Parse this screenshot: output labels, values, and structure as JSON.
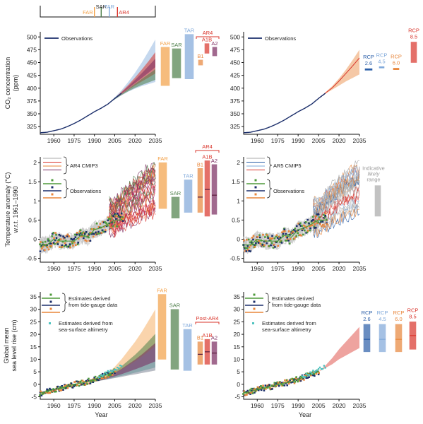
{
  "chart_data": [
    {
      "type": "line",
      "panel": "co2-ar-comparison",
      "ylabel": "CO2 concentration (ppm)",
      "ylim": [
        310,
        510
      ],
      "xlim": [
        1950,
        2035
      ],
      "yticks": [
        325,
        350,
        375,
        400,
        425,
        450,
        475,
        500
      ],
      "xticks": [
        1960,
        1975,
        1990,
        2005,
        2020,
        2035
      ],
      "legend": [
        "Observations"
      ],
      "series": [
        {
          "name": "Observations",
          "x": [
            1950,
            1955,
            1960,
            1965,
            1970,
            1975,
            1980,
            1985,
            1990,
            1995,
            2000,
            2005,
            2010
          ],
          "y": [
            313,
            314,
            317,
            320,
            325,
            331,
            338,
            346,
            354,
            361,
            369,
            380,
            390
          ]
        }
      ],
      "projection_fan": {
        "x": [
          2000,
          2005,
          2010,
          2015,
          2020,
          2025,
          2030,
          2035
        ],
        "low": [
          369,
          378,
          386,
          393,
          399,
          404,
          408,
          412
        ],
        "high": [
          369,
          382,
          396,
          412,
          430,
          450,
          472,
          495
        ]
      },
      "range_bars": [
        {
          "label": "FAR",
          "color": "#f3a047",
          "low": 405,
          "high": 480
        },
        {
          "label": "SAR",
          "color": "#4e7f4a",
          "low": 420,
          "high": 477
        },
        {
          "label": "TAR",
          "color": "#7fa8da",
          "low": 418,
          "high": 505
        },
        {
          "label": "B1",
          "color": "#e8853a",
          "low": 445,
          "high": 455
        },
        {
          "label": "A1B",
          "color": "#d9342b",
          "low": 468,
          "high": 487
        },
        {
          "label": "A2",
          "color": "#7a2a5f",
          "low": 463,
          "high": 480
        }
      ],
      "group_label": "AR4"
    },
    {
      "type": "line",
      "panel": "co2-rcp",
      "ylim": [
        310,
        510
      ],
      "xlim": [
        1950,
        2035
      ],
      "yticks": [
        325,
        350,
        375,
        400,
        425,
        450,
        475,
        500
      ],
      "xticks": [
        1960,
        1975,
        1990,
        2005,
        2020,
        2035
      ],
      "legend": [
        "Observations"
      ],
      "series": [
        {
          "name": "Observations",
          "x": [
            1950,
            1955,
            1960,
            1965,
            1970,
            1975,
            1980,
            1985,
            1990,
            1995,
            2000,
            2005,
            2010
          ],
          "y": [
            313,
            314,
            317,
            320,
            325,
            331,
            338,
            346,
            354,
            361,
            369,
            380,
            390
          ]
        }
      ],
      "projection_fan": {
        "x": [
          2005,
          2010,
          2015,
          2020,
          2025,
          2030,
          2035
        ],
        "low": [
          380,
          389,
          397,
          405,
          413,
          420,
          427
        ],
        "high": [
          380,
          392,
          404,
          419,
          436,
          455,
          475
        ]
      },
      "range_bars": [
        {
          "label": "RCP 2.6",
          "color": "#2a5ea8",
          "low": 435,
          "high": 438
        },
        {
          "label": "RCP 4.5",
          "color": "#7fa8da",
          "low": 440,
          "high": 442
        },
        {
          "label": "RCP 6.0",
          "color": "#e8853a",
          "low": 436,
          "high": 439
        },
        {
          "label": "RCP 8.5",
          "color": "#d9342b",
          "low": 450,
          "high": 490
        }
      ]
    },
    {
      "type": "line",
      "panel": "temperature-ar4",
      "ylabel": "Temperature anomaly (°C) w.r.t. 1961–1990",
      "ylim": [
        -0.6,
        2.15
      ],
      "xlim": [
        1950,
        2035
      ],
      "yticks": [
        -0.5,
        0,
        0.5,
        1,
        1.5,
        2
      ],
      "xticks": [
        1960,
        1975,
        1990,
        2005,
        2020,
        2035
      ],
      "legend": [
        "AR4 CMIP3",
        "Observations"
      ],
      "series": [
        {
          "name": "Observations",
          "x": [
            1950,
            1955,
            1960,
            1965,
            1970,
            1975,
            1980,
            1985,
            1990,
            1995,
            2000,
            2005,
            2010
          ],
          "y": [
            -0.15,
            -0.15,
            0.0,
            -0.05,
            -0.05,
            -0.05,
            0.1,
            0.05,
            0.25,
            0.3,
            0.4,
            0.5,
            0.5
          ]
        }
      ],
      "projection_fan": {
        "x": [
          2005,
          2010,
          2015,
          2020,
          2025,
          2030,
          2035
        ],
        "low": [
          0.2,
          0.3,
          0.4,
          0.45,
          0.55,
          0.6,
          0.7
        ],
        "high": [
          1.0,
          1.2,
          1.4,
          1.55,
          1.7,
          1.85,
          2.0
        ]
      },
      "range_bars": [
        {
          "label": "FAR",
          "color": "#f3a047",
          "low": 0.8,
          "high": 2.0
        },
        {
          "label": "SAR",
          "color": "#4e7f4a",
          "low": 0.55,
          "high": 1.1
        },
        {
          "label": "TAR",
          "color": "#7fa8da",
          "low": 0.7,
          "high": 1.55
        },
        {
          "label": "B1",
          "color": "#e8853a",
          "low": 0.7,
          "high": 1.85,
          "mid": 1.1
        },
        {
          "label": "A1B",
          "color": "#d9342b",
          "low": 0.6,
          "high": 2.05,
          "mid": 1.3
        },
        {
          "label": "A2",
          "color": "#7a2a5f",
          "low": 0.65,
          "high": 1.95,
          "mid": 1.15
        }
      ],
      "group_label": "AR4"
    },
    {
      "type": "line",
      "panel": "temperature-cmip5",
      "ylim": [
        -0.6,
        2.15
      ],
      "xlim": [
        1950,
        2035
      ],
      "yticks": [
        -0.5,
        0,
        0.5,
        1,
        1.5,
        2
      ],
      "xticks": [
        1960,
        1975,
        1990,
        2005,
        2020,
        2035
      ],
      "legend": [
        "AR5 CMIP5",
        "Observations"
      ],
      "annotation": "Indicative likely range",
      "series": [
        {
          "name": "Observations",
          "x": [
            1950,
            1955,
            1960,
            1965,
            1970,
            1975,
            1980,
            1985,
            1990,
            1995,
            2000,
            2005,
            2010
          ],
          "y": [
            -0.15,
            -0.15,
            0.0,
            -0.05,
            -0.05,
            -0.05,
            0.1,
            0.05,
            0.25,
            0.3,
            0.4,
            0.5,
            0.5
          ]
        }
      ],
      "projection_fan": {
        "x": [
          2005,
          2010,
          2015,
          2020,
          2025,
          2030,
          2035
        ],
        "low": [
          0.2,
          0.3,
          0.4,
          0.5,
          0.6,
          0.65,
          0.75
        ],
        "high": [
          1.0,
          1.2,
          1.4,
          1.55,
          1.7,
          1.85,
          1.95
        ]
      },
      "range_bars": [
        {
          "label": "Indicative likely range",
          "color": "#a9a9a9",
          "low": 0.6,
          "high": 1.4
        }
      ]
    },
    {
      "type": "line",
      "panel": "sea-level-ar",
      "ylabel": "Global mean sea level rise (cm)",
      "xlabel": "Year",
      "ylim": [
        -6,
        37
      ],
      "xlim": [
        1950,
        2035
      ],
      "yticks": [
        -5,
        0,
        5,
        10,
        15,
        20,
        25,
        30,
        35
      ],
      "xticks": [
        1960,
        1975,
        1990,
        2005,
        2020,
        2035
      ],
      "legend": [
        "Estimates derived from tide-gauge data",
        "Estimates derived from sea-surface altimetry"
      ],
      "series": [
        {
          "name": "Estimates derived from tide-gauge data",
          "x": [
            1950,
            1955,
            1960,
            1965,
            1970,
            1975,
            1980,
            1985,
            1990,
            1995,
            2000,
            2005
          ],
          "y": [
            -3.5,
            -3,
            -2,
            -1.5,
            -1,
            0,
            0.5,
            1,
            2,
            3,
            4,
            5
          ]
        },
        {
          "name": "Estimates derived from sea-surface altimetry",
          "x": [
            1993,
            1997,
            2001,
            2005,
            2009
          ],
          "y": [
            3,
            4,
            5,
            6,
            7
          ]
        }
      ],
      "projection_fan": {
        "x": [
          1990,
          1995,
          2000,
          2005,
          2010,
          2015,
          2020,
          2025,
          2030,
          2035
        ],
        "low": [
          1,
          1.5,
          2,
          2.5,
          3,
          3.5,
          4,
          4.5,
          5,
          5.5
        ],
        "high": [
          1,
          2.5,
          4.5,
          7,
          10,
          13.5,
          17,
          21,
          25.5,
          30
        ]
      },
      "range_bars": [
        {
          "label": "FAR",
          "color": "#f3a047",
          "low": 10,
          "high": 36
        },
        {
          "label": "SAR",
          "color": "#4e7f4a",
          "low": 6,
          "high": 30
        },
        {
          "label": "TAR",
          "color": "#7fa8da",
          "low": 5.5,
          "high": 22
        },
        {
          "label": "B1",
          "color": "#e8853a",
          "low": 8,
          "high": 17,
          "mid": 12
        },
        {
          "label": "A1B",
          "color": "#d9342b",
          "low": 8,
          "high": 18,
          "mid": 13
        },
        {
          "label": "A2",
          "color": "#7a2a5f",
          "low": 8,
          "high": 17,
          "mid": 12.5
        }
      ],
      "group_label": "Post-AR4"
    },
    {
      "type": "line",
      "panel": "sea-level-rcp",
      "xlabel": "Year",
      "ylim": [
        -6,
        37
      ],
      "xlim": [
        1950,
        2035
      ],
      "yticks": [
        -5,
        0,
        5,
        10,
        15,
        20,
        25,
        30,
        35
      ],
      "xticks": [
        1960,
        1975,
        1990,
        2005,
        2020,
        2035
      ],
      "legend": [
        "Estimates derived from tide-gauge data",
        "Estimates derived from sea-surface altimetry"
      ],
      "series": [
        {
          "name": "Estimates derived from tide-gauge data",
          "x": [
            1950,
            1955,
            1960,
            1965,
            1970,
            1975,
            1980,
            1985,
            1990,
            1995,
            2000,
            2005
          ],
          "y": [
            -3.5,
            -3,
            -2,
            -1.5,
            -1,
            0,
            0.5,
            1,
            2,
            3,
            4,
            5
          ]
        },
        {
          "name": "Estimates derived from sea-surface altimetry",
          "x": [
            1993,
            1997,
            2001,
            2005,
            2009
          ],
          "y": [
            3,
            4,
            5,
            6,
            7
          ]
        }
      ],
      "projection_fan": {
        "x": [
          2005,
          2010,
          2015,
          2020,
          2025,
          2030,
          2035
        ],
        "low": [
          5,
          6.5,
          8,
          10,
          11.5,
          13,
          14.5
        ],
        "high": [
          5,
          7.5,
          10.5,
          14,
          17,
          20,
          23
        ]
      },
      "range_bars": [
        {
          "label": "RCP 2.6",
          "color": "#2a5ea8",
          "low": 13,
          "high": 24,
          "mid": 18
        },
        {
          "label": "RCP 4.5",
          "color": "#7fa8da",
          "low": 13,
          "high": 24,
          "mid": 18
        },
        {
          "label": "RCP 6.0",
          "color": "#e8853a",
          "low": 13,
          "high": 24,
          "mid": 18
        },
        {
          "label": "RCP 8.5",
          "color": "#d9342b",
          "low": 14,
          "high": 25,
          "mid": 19.5
        }
      ]
    }
  ],
  "timeline": {
    "markers": [
      {
        "label": "FAR",
        "year": 1990,
        "color": "#f3a047"
      },
      {
        "label": "SAR",
        "year": 1995,
        "color": "#4e7f4a"
      },
      {
        "label": "TAR",
        "year": 2001,
        "color": "#7fa8da"
      },
      {
        "label": "AR4",
        "year": 2007,
        "color": "#d9342b"
      }
    ]
  },
  "colors": {
    "observations": "#1c2f6b",
    "far": "#f3a047",
    "sar": "#4e7f4a",
    "tar": "#7fa8da",
    "ar4_red": "#d9342b",
    "ar4_purple": "#7a2a5f",
    "rcp26": "#2a5ea8",
    "rcp45": "#7fa8da",
    "rcp60": "#e8853a",
    "rcp85": "#d9342b",
    "grey": "#a9a9a9"
  }
}
